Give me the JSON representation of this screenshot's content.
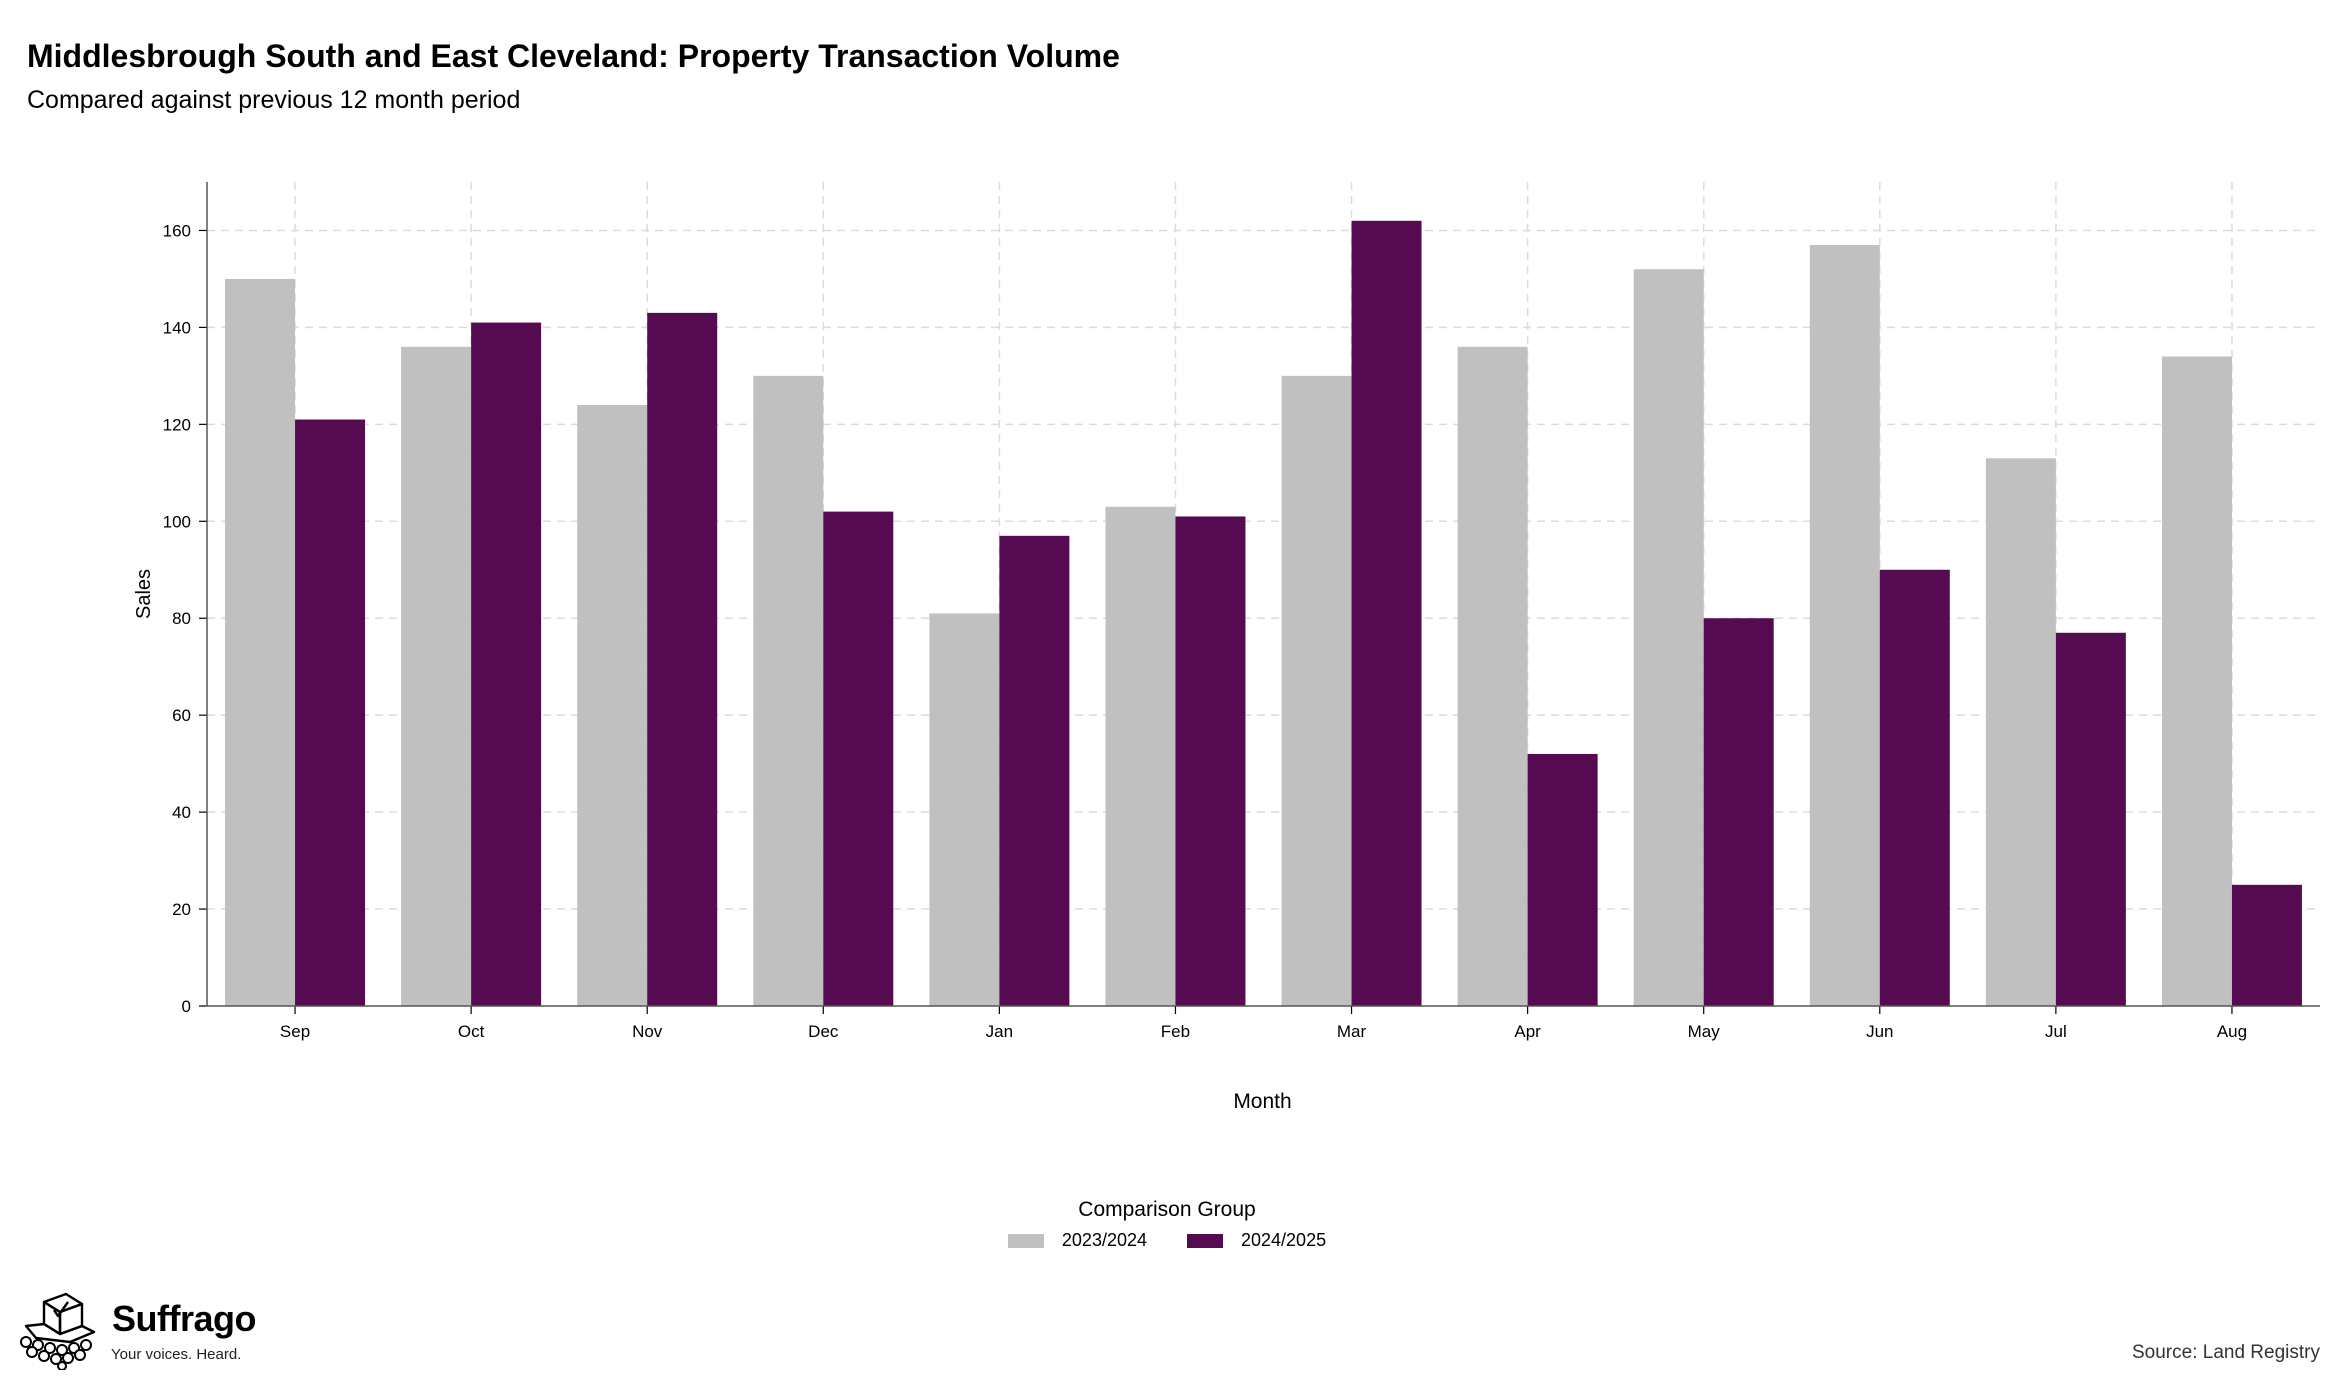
{
  "header": {
    "title": "Middlesbrough South and East Cleveland: Property Transaction Volume",
    "subtitle": "Compared against previous 12 month period"
  },
  "legend": {
    "title": "Comparison Group",
    "items": [
      {
        "label": "2023/2024",
        "color": "#c0c0c0"
      },
      {
        "label": "2024/2025",
        "color": "#550b50"
      }
    ]
  },
  "footer": {
    "brand": "Suffrago",
    "tagline": "Your voices. Heard.",
    "logo_icon": "ballot-box-icon",
    "source": "Source: Land Registry"
  },
  "chart_data": {
    "type": "bar",
    "title": "Middlesbrough South and East Cleveland: Property Transaction Volume",
    "subtitle": "Compared against previous 12 month period",
    "xlabel": "Month",
    "ylabel": "Sales",
    "categories": [
      "Sep",
      "Oct",
      "Nov",
      "Dec",
      "Jan",
      "Feb",
      "Mar",
      "Apr",
      "May",
      "Jun",
      "Jul",
      "Aug"
    ],
    "series": [
      {
        "name": "2023/2024",
        "color": "#c0c0c0",
        "values": [
          150,
          136,
          124,
          130,
          81,
          103,
          130,
          136,
          152,
          157,
          113,
          134
        ]
      },
      {
        "name": "2024/2025",
        "color": "#550b50",
        "values": [
          121,
          141,
          143,
          102,
          97,
          101,
          162,
          52,
          80,
          90,
          77,
          25
        ]
      }
    ],
    "ylim": [
      0,
      170
    ],
    "yticks": [
      0,
      20,
      40,
      60,
      80,
      100,
      120,
      140,
      160
    ],
    "grid": true,
    "legend_position": "bottom"
  }
}
